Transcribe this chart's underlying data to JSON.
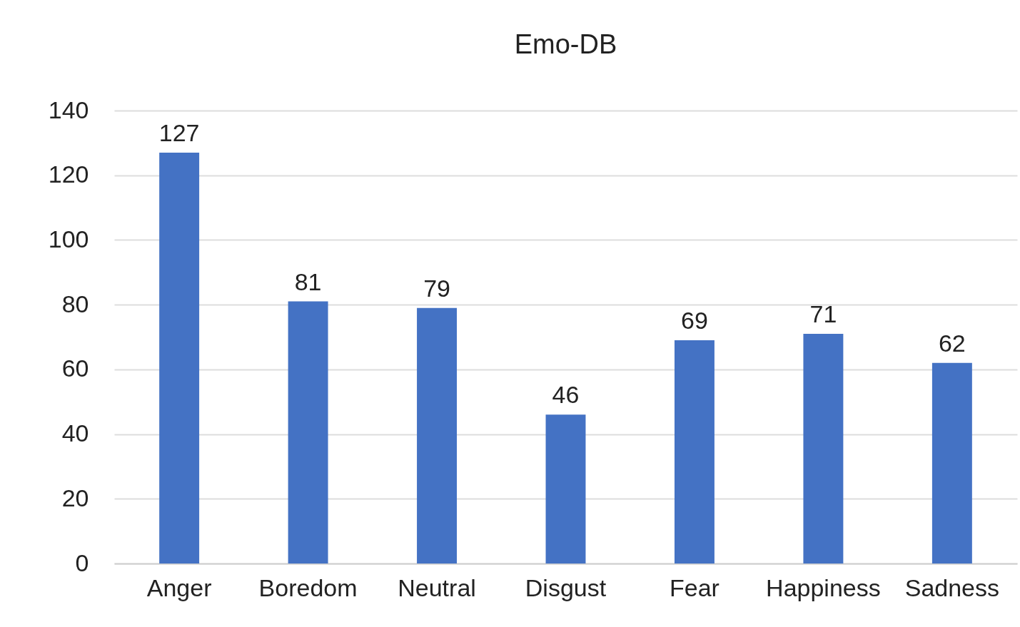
{
  "chart_data": {
    "type": "bar",
    "title": "Emo-DB",
    "categories": [
      "Anger",
      "Boredom",
      "Neutral",
      "Disgust",
      "Fear",
      "Happiness",
      "Sadness"
    ],
    "values": [
      127,
      81,
      79,
      46,
      69,
      71,
      62
    ],
    "color": "#4472c4",
    "ylim": [
      0,
      140
    ],
    "yticks": [
      0,
      20,
      40,
      60,
      80,
      100,
      120,
      140
    ],
    "grid": "y",
    "data_labels": true
  }
}
